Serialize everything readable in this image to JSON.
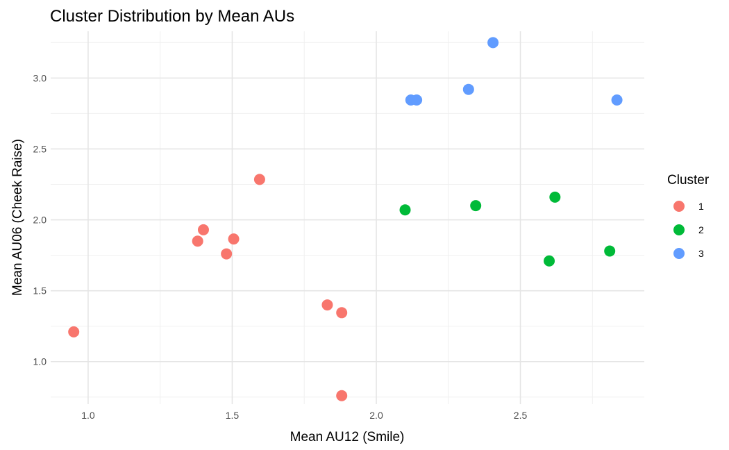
{
  "chart_data": {
    "type": "scatter",
    "title": "Cluster Distribution by Mean AUs",
    "xlabel": "Mean AU12 (Smile)",
    "ylabel": "Mean AU06 (Cheek Raise)",
    "xlim": [
      0.87,
      2.93
    ],
    "ylim": [
      0.7,
      3.33
    ],
    "x_ticks": [
      "1.0",
      "1.5",
      "2.0",
      "2.5"
    ],
    "y_ticks": [
      "1.0",
      "1.5",
      "2.0",
      "2.5",
      "3.0"
    ],
    "grid": true,
    "legend": {
      "title": "Cluster",
      "position": "right"
    },
    "series": [
      {
        "name": "1",
        "color": "#F8766D",
        "points": [
          {
            "x": 0.95,
            "y": 1.21
          },
          {
            "x": 1.38,
            "y": 1.85
          },
          {
            "x": 1.4,
            "y": 1.93
          },
          {
            "x": 1.48,
            "y": 1.76
          },
          {
            "x": 1.505,
            "y": 1.865
          },
          {
            "x": 1.595,
            "y": 2.285
          },
          {
            "x": 1.83,
            "y": 1.4
          },
          {
            "x": 1.88,
            "y": 1.345
          },
          {
            "x": 1.88,
            "y": 0.76
          }
        ]
      },
      {
        "name": "2",
        "color": "#00BA38",
        "points": [
          {
            "x": 2.1,
            "y": 2.07
          },
          {
            "x": 2.345,
            "y": 2.1
          },
          {
            "x": 2.6,
            "y": 1.71
          },
          {
            "x": 2.62,
            "y": 2.16
          },
          {
            "x": 2.81,
            "y": 1.78
          }
        ]
      },
      {
        "name": "3",
        "color": "#619CFF",
        "points": [
          {
            "x": 2.12,
            "y": 2.845
          },
          {
            "x": 2.14,
            "y": 2.845
          },
          {
            "x": 2.32,
            "y": 2.92
          },
          {
            "x": 2.405,
            "y": 3.25
          },
          {
            "x": 2.835,
            "y": 2.845
          }
        ]
      }
    ]
  }
}
